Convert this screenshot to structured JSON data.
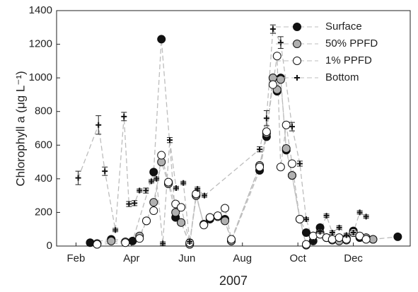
{
  "chart_data": {
    "type": "scatter",
    "xlabel": "2007",
    "ylabel": "Chlorophyll a (μg L⁻¹)",
    "xlim": [
      1.3,
      14.05
    ],
    "ylim": [
      0,
      1400
    ],
    "xticks": [
      {
        "value": 2,
        "label": "Feb"
      },
      {
        "value": 4,
        "label": "Apr"
      },
      {
        "value": 6,
        "label": "Jun"
      },
      {
        "value": 8,
        "label": "Aug"
      },
      {
        "value": 10,
        "label": "Oct"
      },
      {
        "value": 12,
        "label": "Dec"
      }
    ],
    "yticks": [
      0,
      200,
      400,
      600,
      800,
      1000,
      1200,
      1400
    ],
    "line_color": "#bdbdbd",
    "series": [
      {
        "name": "Surface",
        "color": "#111111",
        "marker": "circle",
        "x": [
          2.51,
          3.27,
          4.04,
          4.8,
          5.08,
          5.59,
          5.79,
          6.1,
          6.33,
          6.61,
          6.83,
          7.11,
          7.37,
          7.6,
          8.62,
          8.87,
          9.1,
          9.25,
          9.38,
          9.58,
          9.79,
          10.07,
          10.3,
          10.55,
          10.8,
          11.03,
          11.24,
          11.49,
          11.75,
          12.0,
          12.23,
          12.46,
          12.71,
          13.6
        ],
        "values": [
          20,
          40,
          30,
          440,
          1230,
          170,
          140,
          15,
          300,
          130,
          160,
          175,
          160,
          30,
          450,
          650,
          1000,
          920,
          1000,
          570,
          420,
          160,
          80,
          30,
          110,
          50,
          40,
          40,
          45,
          90,
          50,
          45,
          40,
          55
        ]
      },
      {
        "name": "50% PPFD",
        "color": "#b0b0b0",
        "marker": "circle",
        "x": [
          2.76,
          3.27,
          3.78,
          4.29,
          4.54,
          4.8,
          5.08,
          5.33,
          5.59,
          5.79,
          6.1,
          6.33,
          6.61,
          6.83,
          7.11,
          7.37,
          7.6,
          8.62,
          8.87,
          9.1,
          9.25,
          9.38,
          9.58,
          9.79,
          10.07,
          10.3,
          10.55,
          10.8,
          11.03,
          11.24,
          11.49,
          11.75,
          12.0,
          12.23,
          12.46,
          12.71
        ],
        "values": [
          15,
          30,
          25,
          60,
          150,
          260,
          500,
          370,
          200,
          140,
          10,
          300,
          130,
          170,
          175,
          150,
          30,
          480,
          670,
          1000,
          930,
          990,
          580,
          420,
          160,
          5,
          60,
          80,
          50,
          35,
          30,
          35,
          80,
          55,
          50,
          40
        ]
      },
      {
        "name": "1% PPFD",
        "color": "#ffffff",
        "marker": "circle",
        "x": [
          2.76,
          3.78,
          4.29,
          4.54,
          4.8,
          5.08,
          5.33,
          5.59,
          5.79,
          6.1,
          6.33,
          6.61,
          6.83,
          7.11,
          7.37,
          7.6,
          8.62,
          8.87,
          9.1,
          9.25,
          9.38,
          9.58,
          9.79,
          10.07,
          10.3,
          10.55,
          10.8,
          11.03,
          11.24,
          11.49,
          11.75,
          12.0,
          12.23,
          12.46
        ],
        "values": [
          10,
          20,
          45,
          150,
          210,
          540,
          380,
          250,
          230,
          20,
          310,
          125,
          170,
          180,
          225,
          40,
          470,
          680,
          960,
          1130,
          470,
          720,
          490,
          160,
          10,
          60,
          70,
          50,
          40,
          50,
          40,
          80,
          60,
          40
        ]
      },
      {
        "name": "Bottom",
        "color": "#111111",
        "marker": "plus",
        "x": [
          2.08,
          2.81,
          3.04,
          3.42,
          3.73,
          3.91,
          4.11,
          4.29,
          4.52,
          4.72,
          4.9,
          5.13,
          5.38,
          5.61,
          5.87,
          6.1,
          6.38,
          6.63,
          8.62,
          8.87,
          9.1,
          9.38,
          9.79,
          10.07,
          10.3,
          10.55,
          10.8,
          11.03,
          11.24,
          11.49,
          11.75,
          12.0,
          12.23,
          12.46
        ],
        "values": [
          405,
          720,
          445,
          95,
          770,
          250,
          255,
          330,
          330,
          385,
          400,
          15,
          630,
          345,
          375,
          25,
          340,
          300,
          575,
          760,
          1290,
          1210,
          710,
          490,
          160,
          25,
          85,
          180,
          80,
          110,
          65,
          80,
          200,
          175
        ],
        "errors": [
          40,
          55,
          25,
          10,
          25,
          15,
          15,
          10,
          15,
          10,
          10,
          10,
          15,
          10,
          10,
          10,
          10,
          10,
          15,
          45,
          25,
          35,
          25,
          15,
          10,
          10,
          10,
          10,
          10,
          10,
          10,
          10,
          10,
          10
        ]
      }
    ]
  }
}
